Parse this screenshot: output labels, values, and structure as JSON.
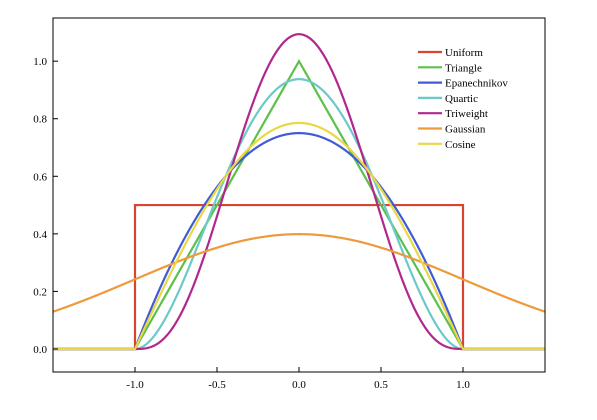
{
  "chart_data": {
    "type": "line",
    "title": "",
    "xlabel": "",
    "ylabel": "",
    "xlim": [
      -1.5,
      1.5
    ],
    "ylim": [
      -0.08,
      1.15
    ],
    "x_ticks": [
      -1.0,
      -0.5,
      0.0,
      0.5,
      1.0
    ],
    "x_tick_labels": [
      "-1.0",
      "-0.5",
      "0.0",
      "0.5",
      "1.0"
    ],
    "y_ticks": [
      0.0,
      0.2,
      0.4,
      0.6,
      0.8,
      1.0
    ],
    "y_tick_labels": [
      "0.0",
      "0.2",
      "0.4",
      "0.6",
      "0.8",
      "1.0"
    ],
    "grid": false,
    "legend_position": "top-right",
    "series": [
      {
        "name": "Uniform",
        "color": "#d9432f",
        "kernel": "uniform"
      },
      {
        "name": "Triangle",
        "color": "#5cc04a",
        "kernel": "triangle"
      },
      {
        "name": "Epanechnikov",
        "color": "#3f5bd6",
        "kernel": "epanechnikov"
      },
      {
        "name": "Quartic",
        "color": "#6cc9c9",
        "kernel": "quartic"
      },
      {
        "name": "Triweight",
        "color": "#b0278f",
        "kernel": "triweight"
      },
      {
        "name": "Gaussian",
        "color": "#ee9a3c",
        "kernel": "gaussian"
      },
      {
        "name": "Cosine",
        "color": "#ead745",
        "kernel": "cosine"
      }
    ]
  }
}
